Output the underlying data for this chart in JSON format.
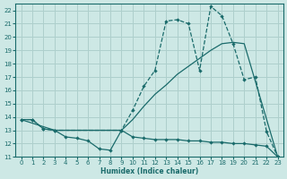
{
  "xlabel": "Humidex (Indice chaleur)",
  "xlim": [
    -0.5,
    23.5
  ],
  "ylim": [
    11,
    22.5
  ],
  "yticks": [
    11,
    12,
    13,
    14,
    15,
    16,
    17,
    18,
    19,
    20,
    21,
    22
  ],
  "xticks": [
    0,
    1,
    2,
    3,
    4,
    5,
    6,
    7,
    8,
    9,
    10,
    11,
    12,
    13,
    14,
    15,
    16,
    17,
    18,
    19,
    20,
    21,
    22,
    23
  ],
  "bg_color": "#cde8e5",
  "grid_color": "#aecfcc",
  "line_color": "#1a6b6b",
  "line_upper_x": [
    0,
    1,
    2,
    3,
    9,
    10,
    11,
    12,
    13,
    14,
    15,
    16,
    17,
    18,
    19,
    20,
    21,
    22,
    23
  ],
  "line_upper_y": [
    13.8,
    13.8,
    13.1,
    13.0,
    13.0,
    14.5,
    16.3,
    17.5,
    21.2,
    21.3,
    21.0,
    17.5,
    22.3,
    21.6,
    19.5,
    16.8,
    17.0,
    12.9,
    11.0
  ],
  "line_mid_x": [
    0,
    3,
    9,
    10,
    11,
    12,
    13,
    14,
    15,
    16,
    17,
    18,
    19,
    20,
    23
  ],
  "line_mid_y": [
    13.8,
    13.0,
    13.0,
    13.8,
    14.8,
    15.7,
    16.4,
    17.2,
    17.8,
    18.4,
    19.0,
    19.5,
    19.6,
    19.5,
    11.0
  ],
  "line_low_x": [
    0,
    1,
    2,
    3,
    4,
    5,
    6,
    7,
    8,
    9,
    10,
    11,
    12,
    13,
    14,
    15,
    16,
    17,
    18,
    19,
    20,
    21,
    22,
    23
  ],
  "line_low_y": [
    13.8,
    13.8,
    13.1,
    13.0,
    12.5,
    12.4,
    12.2,
    11.6,
    11.5,
    13.0,
    12.5,
    12.4,
    12.3,
    12.3,
    12.3,
    12.2,
    12.2,
    12.1,
    12.1,
    12.0,
    12.0,
    11.9,
    11.8,
    11.0
  ]
}
